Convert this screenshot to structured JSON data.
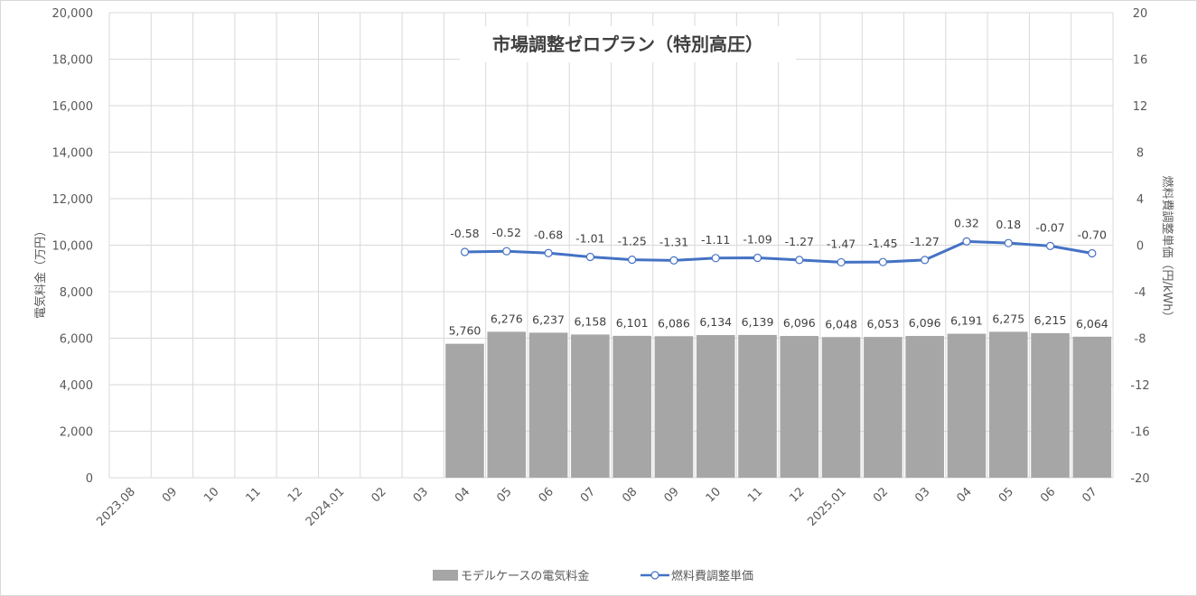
{
  "chart_data": {
    "type": "bar",
    "title": "市場調整ゼロプラン（特別高圧）",
    "ylabel": "電気料金（万円）",
    "y2label": "燃料費調整単価（円/kWh）",
    "ylim": [
      0,
      20000
    ],
    "y2lim": [
      -20,
      20
    ],
    "yticks": [
      "0",
      "2,000",
      "4,000",
      "6,000",
      "8,000",
      "10,000",
      "12,000",
      "14,000",
      "16,000",
      "18,000",
      "20,000"
    ],
    "y2ticks": [
      "-20",
      "-16",
      "-12",
      "-8",
      "-4",
      "0",
      "4",
      "8",
      "12",
      "16",
      "20"
    ],
    "grid": true,
    "legend_position": "bottom",
    "categories": [
      "2023.08",
      "09",
      "10",
      "11",
      "12",
      "2024.01",
      "02",
      "03",
      "04",
      "05",
      "06",
      "07",
      "08",
      "09",
      "10",
      "11",
      "12",
      "2025.01",
      "02",
      "03",
      "04",
      "05",
      "06",
      "07"
    ],
    "series": [
      {
        "name": "モデルケースの電気料金",
        "type": "bar",
        "axis": "left",
        "color": "#a6a6a6",
        "values": [
          null,
          null,
          null,
          null,
          null,
          null,
          null,
          null,
          5760,
          6276,
          6237,
          6158,
          6101,
          6086,
          6134,
          6139,
          6096,
          6048,
          6053,
          6096,
          6191,
          6275,
          6215,
          6064
        ],
        "labels": [
          "",
          "",
          "",
          "",
          "",
          "",
          "",
          "",
          "5,760",
          "6,276",
          "6,237",
          "6,158",
          "6,101",
          "6,086",
          "6,134",
          "6,139",
          "6,096",
          "6,048",
          "6,053",
          "6,096",
          "6,191",
          "6,275",
          "6,215",
          "6,064"
        ]
      },
      {
        "name": "燃料費調整単価",
        "type": "line",
        "axis": "right",
        "color": "#4472c4",
        "values": [
          null,
          null,
          null,
          null,
          null,
          null,
          null,
          null,
          -0.58,
          -0.52,
          -0.68,
          -1.01,
          -1.25,
          -1.31,
          -1.11,
          -1.09,
          -1.27,
          -1.47,
          -1.45,
          -1.27,
          0.32,
          0.18,
          -0.07,
          -0.7
        ],
        "labels": [
          "",
          "",
          "",
          "",
          "",
          "",
          "",
          "",
          "-0.58",
          "-0.52",
          "-0.68",
          "-1.01",
          "-1.25",
          "-1.31",
          "-1.11",
          "-1.09",
          "-1.27",
          "-1.47",
          "-1.45",
          "-1.27",
          "0.32",
          "0.18",
          "-0.07",
          "-0.70"
        ]
      }
    ]
  }
}
